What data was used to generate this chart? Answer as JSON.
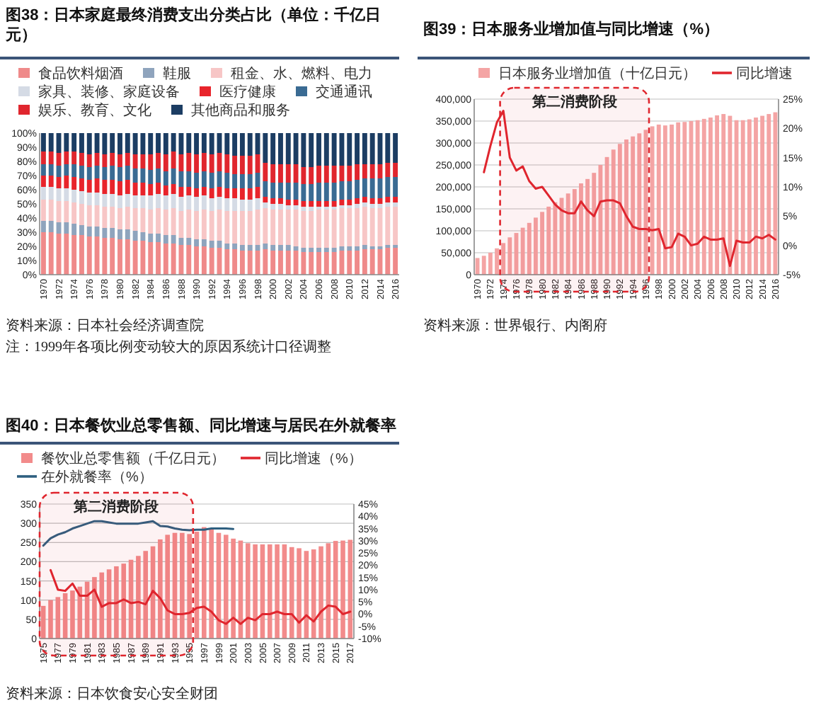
{
  "chart_data": [
    {
      "type": "bar",
      "stacked": true,
      "title": "图38：日本家庭最终消费支出分类占比（单位：千亿日元）",
      "legend": "top",
      "categories": [
        "1970",
        null,
        "1972",
        null,
        "1974",
        null,
        "1976",
        null,
        "1978",
        null,
        "1980",
        null,
        "1982",
        null,
        "1984",
        null,
        "1986",
        null,
        "1988",
        null,
        "1990",
        null,
        "1992",
        null,
        "1994",
        null,
        "1996",
        null,
        "1998",
        null,
        "2000",
        null,
        "2002",
        null,
        "2004",
        null,
        "2006",
        null,
        "2008",
        null,
        "2010",
        null,
        "2012",
        null,
        "2014",
        null,
        "2016"
      ],
      "series": [
        {
          "name": "食品饮料烟酒",
          "color": "#ef8a8a",
          "values": [
            30,
            30,
            29,
            29,
            28,
            28,
            27,
            27,
            26,
            26,
            25,
            25,
            24,
            24,
            23,
            23,
            22,
            22,
            21,
            21,
            20,
            20,
            19,
            19,
            18,
            18,
            17,
            17,
            17,
            18,
            17,
            17,
            17,
            17,
            16,
            16,
            16,
            16,
            16,
            17,
            17,
            17,
            18,
            18,
            18,
            19,
            19
          ]
        },
        {
          "name": "鞋服",
          "color": "#8fa4bd",
          "values": [
            8,
            8,
            8,
            8,
            8,
            7,
            7,
            7,
            7,
            7,
            7,
            7,
            7,
            6,
            6,
            6,
            6,
            6,
            5,
            5,
            5,
            5,
            5,
            5,
            4,
            4,
            4,
            4,
            4,
            4,
            4,
            4,
            4,
            3,
            3,
            3,
            3,
            3,
            3,
            3,
            3,
            3,
            3,
            2,
            2,
            2,
            2
          ]
        },
        {
          "name": "租金、水、燃料、电力",
          "color": "#f7c6c6",
          "values": [
            15,
            15,
            15,
            15,
            15,
            15,
            15,
            15,
            15,
            15,
            15,
            16,
            16,
            17,
            17,
            18,
            18,
            19,
            19,
            20,
            20,
            21,
            21,
            22,
            23,
            23,
            24,
            24,
            25,
            25,
            25,
            25,
            25,
            26,
            26,
            26,
            27,
            27,
            27,
            27,
            27,
            27,
            27,
            27,
            27,
            27,
            27
          ]
        },
        {
          "name": "家具、装修、家庭设备",
          "color": "#d5dbe5",
          "values": [
            9,
            9,
            9,
            9,
            9,
            9,
            9,
            9,
            9,
            9,
            9,
            9,
            9,
            9,
            10,
            10,
            10,
            10,
            10,
            10,
            10,
            10,
            9,
            9,
            9,
            9,
            8,
            8,
            8,
            4,
            4,
            4,
            3,
            3,
            3,
            3,
            2,
            2,
            2,
            2,
            2,
            3,
            3,
            3,
            3,
            3,
            3
          ]
        },
        {
          "name": "医疗健康",
          "color": "#e8242b",
          "values": [
            8,
            8,
            8,
            9,
            9,
            9,
            9,
            10,
            10,
            10,
            10,
            10,
            9,
            9,
            8,
            8,
            7,
            7,
            7,
            6,
            6,
            6,
            7,
            7,
            7,
            7,
            8,
            8,
            8,
            4,
            4,
            4,
            4,
            4,
            4,
            4,
            4,
            4,
            4,
            4,
            4,
            4,
            4,
            4,
            4,
            4,
            4
          ]
        },
        {
          "name": "交通通讯",
          "color": "#3a6b93",
          "values": [
            8,
            8,
            8,
            8,
            9,
            9,
            9,
            9,
            9,
            10,
            10,
            10,
            10,
            10,
            10,
            10,
            10,
            11,
            11,
            11,
            11,
            11,
            11,
            11,
            11,
            10,
            10,
            10,
            10,
            11,
            11,
            11,
            12,
            12,
            12,
            12,
            13,
            13,
            13,
            13,
            13,
            13,
            13,
            14,
            14,
            14,
            14
          ]
        },
        {
          "name": "娱乐、教育、文化",
          "color": "#e0262e",
          "values": [
            9,
            9,
            9,
            9,
            9,
            9,
            9,
            9,
            9,
            9,
            9,
            9,
            10,
            10,
            11,
            11,
            12,
            12,
            12,
            13,
            13,
            13,
            13,
            13,
            13,
            13,
            13,
            13,
            13,
            13,
            13,
            13,
            13,
            13,
            12,
            12,
            12,
            12,
            12,
            11,
            11,
            11,
            10,
            10,
            10,
            10,
            10
          ]
        },
        {
          "name": "其他商品和服务",
          "color": "#1c3d63",
          "values": [
            13,
            13,
            14,
            13,
            13,
            14,
            15,
            14,
            15,
            14,
            15,
            14,
            15,
            15,
            15,
            14,
            15,
            13,
            15,
            14,
            15,
            14,
            15,
            14,
            15,
            16,
            16,
            16,
            15,
            21,
            22,
            22,
            22,
            22,
            24,
            24,
            23,
            23,
            23,
            23,
            23,
            22,
            22,
            22,
            22,
            21,
            21
          ]
        }
      ],
      "ylim": [
        0,
        100
      ],
      "yticks": [
        {
          "value": 0,
          "label": "0%"
        },
        {
          "value": 10,
          "label": "10%"
        },
        {
          "value": 20,
          "label": "20%"
        },
        {
          "value": 30,
          "label": "30%"
        },
        {
          "value": 40,
          "label": "40%"
        },
        {
          "value": 50,
          "label": "50%"
        },
        {
          "value": 60,
          "label": "60%"
        },
        {
          "value": 70,
          "label": "70%"
        },
        {
          "value": 80,
          "label": "80%"
        },
        {
          "value": 90,
          "label": "90%"
        },
        {
          "value": 100,
          "label": "100%"
        }
      ],
      "annotations": [
        "资料来源：日本社会经济调查院",
        "注：1999年各项比例变动较大的原因系统计口径调整"
      ]
    },
    {
      "type": "bar",
      "title": "图39：日本服务业增加值与同比增速（%）",
      "legend": "top",
      "grid": "y",
      "categories": [
        "1970",
        null,
        "1972",
        null,
        "1974",
        null,
        "1976",
        null,
        "1978",
        null,
        "1980",
        null,
        "1982",
        null,
        "1984",
        null,
        "1986",
        null,
        "1988",
        null,
        "1990",
        null,
        "1992",
        null,
        "1994",
        null,
        "1996",
        null,
        "1998",
        null,
        "2000",
        null,
        "2002",
        null,
        "2004",
        null,
        "2006",
        null,
        "2008",
        null,
        "2010",
        null,
        "2012",
        null,
        "2014",
        null,
        "2016"
      ],
      "series": [
        {
          "name": "日本服务业增加值（十亿日元）",
          "color": "#f4a4a4",
          "values": [
            38000,
            43000,
            50000,
            60000,
            72000,
            85000,
            95000,
            107000,
            118000,
            130000,
            143000,
            155000,
            165000,
            175000,
            185000,
            195000,
            208000,
            218000,
            232000,
            250000,
            268000,
            285000,
            298000,
            308000,
            315000,
            322000,
            330000,
            338000,
            342000,
            340000,
            342000,
            347000,
            348000,
            350000,
            352000,
            355000,
            358000,
            363000,
            366000,
            362000,
            352000,
            352000,
            354000,
            358000,
            362000,
            366000,
            370000
          ]
        },
        {
          "name": "同比增速",
          "type": "line",
          "axis": "y2",
          "color": "#e0262e",
          "values": [
            null,
            12.5,
            17,
            21,
            23,
            15,
            12.8,
            13.5,
            11,
            9.7,
            10,
            8.5,
            7,
            6,
            5.5,
            5.5,
            7.5,
            6,
            5,
            7.5,
            7.7,
            7.7,
            7.2,
            5,
            3.2,
            2.8,
            2.8,
            2.6,
            2.8,
            -0.5,
            -0.3,
            2,
            1.5,
            0,
            0.3,
            1.5,
            1,
            1,
            1.2,
            -3.5,
            0.8,
            0.5,
            0.5,
            1.5,
            1.2,
            1.8,
            1
          ]
        }
      ],
      "ylim": [
        0,
        400000
      ],
      "yticks": [
        0,
        {
          "value": 50000,
          "label": "50,000"
        },
        {
          "value": 100000,
          "label": "100,000"
        },
        {
          "value": 150000,
          "label": "150,000"
        },
        {
          "value": 200000,
          "label": "200,000"
        },
        {
          "value": 250000,
          "label": "250,000"
        },
        {
          "value": 300000,
          "label": "300,000"
        },
        {
          "value": 350000,
          "label": "350,000"
        },
        {
          "value": 400000,
          "label": "400,000"
        }
      ],
      "y2lim": [
        -5,
        25
      ],
      "y2ticks": [
        {
          "value": -5,
          "label": "-5%"
        },
        {
          "value": 0,
          "label": "0%"
        },
        {
          "value": 5,
          "label": "5%"
        },
        {
          "value": 10,
          "label": "10%"
        },
        {
          "value": 15,
          "label": "15%"
        },
        {
          "value": 20,
          "label": "20%"
        },
        {
          "value": 25,
          "label": "25%"
        }
      ],
      "bands": [
        {
          "axis": "x",
          "from": "1974",
          "to": "1996",
          "label": "第二消费阶段",
          "color": "#e0262e"
        }
      ],
      "annotations": [
        "资料来源：世界银行、内阁府"
      ]
    },
    {
      "type": "bar",
      "title": "图40：日本餐饮业总零售额、同比增速与居民在外就餐率",
      "legend": "top",
      "grid": "y",
      "categories": [
        "1975",
        null,
        "1977",
        null,
        "1979",
        null,
        "1981",
        null,
        "1983",
        null,
        "1985",
        null,
        "1987",
        null,
        "1989",
        null,
        "1991",
        null,
        "1993",
        null,
        "1995",
        null,
        "1997",
        null,
        "1999",
        null,
        "2001",
        null,
        "2003",
        null,
        "2005",
        null,
        "2007",
        null,
        "2009",
        null,
        "2011",
        null,
        "2013",
        null,
        "2015",
        null,
        "2017"
      ],
      "series": [
        {
          "name": "餐饮业总零售额（千亿日元）",
          "color": "#f28b8b",
          "values": [
            85,
            100,
            108,
            118,
            125,
            135,
            148,
            160,
            172,
            180,
            188,
            195,
            205,
            215,
            228,
            240,
            258,
            270,
            275,
            275,
            272,
            278,
            290,
            285,
            275,
            270,
            260,
            255,
            248,
            245,
            245,
            245,
            245,
            245,
            238,
            235,
            228,
            232,
            240,
            248,
            254,
            255,
            257
          ]
        },
        {
          "name": "同比增速（%）",
          "type": "line",
          "axis": "y2",
          "color": "#e0262e",
          "values": [
            null,
            18,
            10,
            9.5,
            12.5,
            7.5,
            7.5,
            10,
            3,
            4.5,
            4.5,
            6,
            4.5,
            5,
            4,
            9.5,
            6.5,
            1.5,
            0,
            0,
            0.5,
            2.5,
            3,
            1,
            -2.5,
            -4,
            -1.5,
            -4,
            -1.5,
            -2.5,
            0,
            0,
            1,
            0,
            0,
            -3.5,
            -0.5,
            -3,
            1,
            3.5,
            3,
            0,
            1
          ]
        },
        {
          "name": "在外就餐率（%）",
          "type": "line",
          "axis": "y2",
          "color": "#2e5f80",
          "values": [
            28,
            31,
            32.5,
            33.5,
            35,
            36,
            37,
            38,
            38,
            37.5,
            37,
            37,
            37,
            37,
            37.5,
            38,
            36,
            35.8,
            35,
            34.5,
            34.3,
            34.5,
            34.5,
            35,
            35,
            35,
            34.8,
            null,
            null,
            null,
            null,
            null,
            null,
            null,
            null,
            null,
            null,
            null,
            null,
            null,
            null,
            null,
            null
          ]
        }
      ],
      "ylim": [
        0,
        350
      ],
      "yticks": [
        0,
        50,
        100,
        150,
        200,
        250,
        300,
        350
      ],
      "y2lim": [
        -10,
        45
      ],
      "y2ticks": [
        {
          "value": -10,
          "label": "-10%"
        },
        {
          "value": -5,
          "label": "-5%"
        },
        {
          "value": 0,
          "label": "0%"
        },
        {
          "value": 5,
          "label": "5%"
        },
        {
          "value": 10,
          "label": "10%"
        },
        {
          "value": 15,
          "label": "15%"
        },
        {
          "value": 20,
          "label": "20%"
        },
        {
          "value": 25,
          "label": "25%"
        },
        {
          "value": 30,
          "label": "30%"
        },
        {
          "value": 35,
          "label": "35%"
        },
        {
          "value": 40,
          "label": "40%"
        },
        {
          "value": 45,
          "label": "45%"
        }
      ],
      "bands": [
        {
          "axis": "x",
          "from": "1975",
          "to": "1995",
          "label": "第二消费阶段",
          "color": "#e0262e"
        }
      ],
      "annotations": [
        "资料来源：日本饮食安心安全财团"
      ]
    }
  ]
}
